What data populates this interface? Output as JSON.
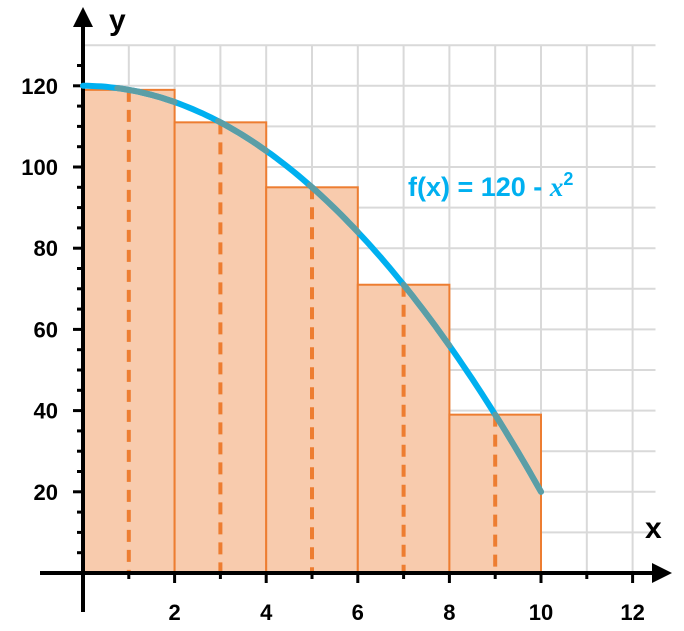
{
  "chart_data": {
    "type": "bar",
    "title": "",
    "xlabel": "x",
    "ylabel": "y",
    "xlim": [
      0,
      12.5
    ],
    "ylim": [
      0,
      128
    ],
    "x_ticks": [
      2,
      4,
      6,
      8,
      10,
      12
    ],
    "y_ticks": [
      20,
      40,
      60,
      80,
      100,
      120
    ],
    "grid": true,
    "rectangles": {
      "intervals": [
        [
          0,
          2
        ],
        [
          2,
          4
        ],
        [
          4,
          6
        ],
        [
          6,
          8
        ],
        [
          8,
          10
        ]
      ],
      "midpoints": [
        1,
        3,
        5,
        7,
        9
      ],
      "heights": [
        119,
        111,
        95,
        71,
        39
      ]
    },
    "curve": {
      "function": {
        "prefix": "f(x) = 120 - ",
        "variable": "x",
        "exponent": "2"
      },
      "domain": [
        0,
        10
      ],
      "constant": 120
    },
    "colors": {
      "bar_fill": "#f8cbad",
      "bar_stroke": "#ed7d31",
      "midpoint_line": "#ed7d31",
      "curve": "#00b0f0",
      "curve_overlap": "#5b9ea6",
      "label": "#00b0f0",
      "grid": "#d9d9d9",
      "axis": "#000000"
    }
  }
}
